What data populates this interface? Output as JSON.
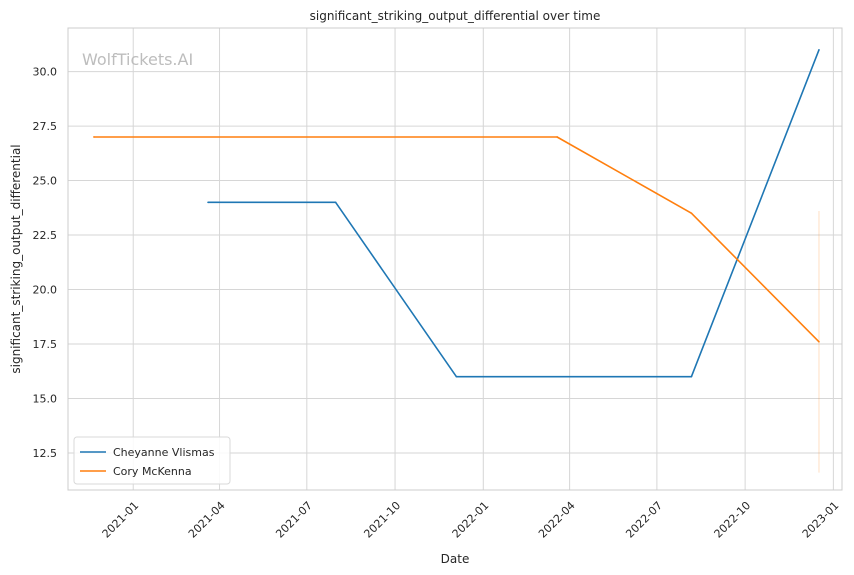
{
  "chart_data": {
    "type": "line",
    "title": "significant_striking_output_differential over time",
    "xlabel": "Date",
    "ylabel": "significant_striking_output_differential",
    "watermark": "WolfTickets.AI",
    "grid": true,
    "legend_position": "lower-left",
    "xlim": [
      "2020-10-25",
      "2023-01-10"
    ],
    "ylim": [
      10.8,
      32.0
    ],
    "x_ticks": [
      {
        "date": "2021-01-01",
        "label": "2021-01"
      },
      {
        "date": "2021-04-01",
        "label": "2021-04"
      },
      {
        "date": "2021-07-01",
        "label": "2021-07"
      },
      {
        "date": "2021-10-01",
        "label": "2021-10"
      },
      {
        "date": "2022-01-01",
        "label": "2022-01"
      },
      {
        "date": "2022-04-01",
        "label": "2022-04"
      },
      {
        "date": "2022-07-01",
        "label": "2022-07"
      },
      {
        "date": "2022-10-01",
        "label": "2022-10"
      },
      {
        "date": "2023-01-01",
        "label": "2023-01"
      }
    ],
    "y_ticks": [
      {
        "value": 12.5,
        "label": "12.5"
      },
      {
        "value": 15.0,
        "label": "15.0"
      },
      {
        "value": 17.5,
        "label": "17.5"
      },
      {
        "value": 20.0,
        "label": "20.0"
      },
      {
        "value": 22.5,
        "label": "22.5"
      },
      {
        "value": 25.0,
        "label": "25.0"
      },
      {
        "value": 27.5,
        "label": "27.5"
      },
      {
        "value": 30.0,
        "label": "30.0"
      }
    ],
    "series": [
      {
        "name": "Cheyanne Vlismas",
        "color": "#1f77b4",
        "points": [
          {
            "x": "2021-03-20",
            "y": 24.0
          },
          {
            "x": "2021-07-31",
            "y": 24.0
          },
          {
            "x": "2021-12-04",
            "y": 16.0
          },
          {
            "x": "2022-08-06",
            "y": 16.0
          },
          {
            "x": "2022-12-17",
            "y": 31.0
          }
        ]
      },
      {
        "name": "Cory McKenna",
        "color": "#ff7f0e",
        "points": [
          {
            "x": "2020-11-21",
            "y": 27.0
          },
          {
            "x": "2022-03-19",
            "y": 27.0
          },
          {
            "x": "2022-08-06",
            "y": 23.5
          },
          {
            "x": "2022-12-17",
            "y": 17.6
          }
        ],
        "error_band": {
          "x": "2022-12-17",
          "low": 11.6,
          "high": 23.6
        }
      }
    ]
  }
}
